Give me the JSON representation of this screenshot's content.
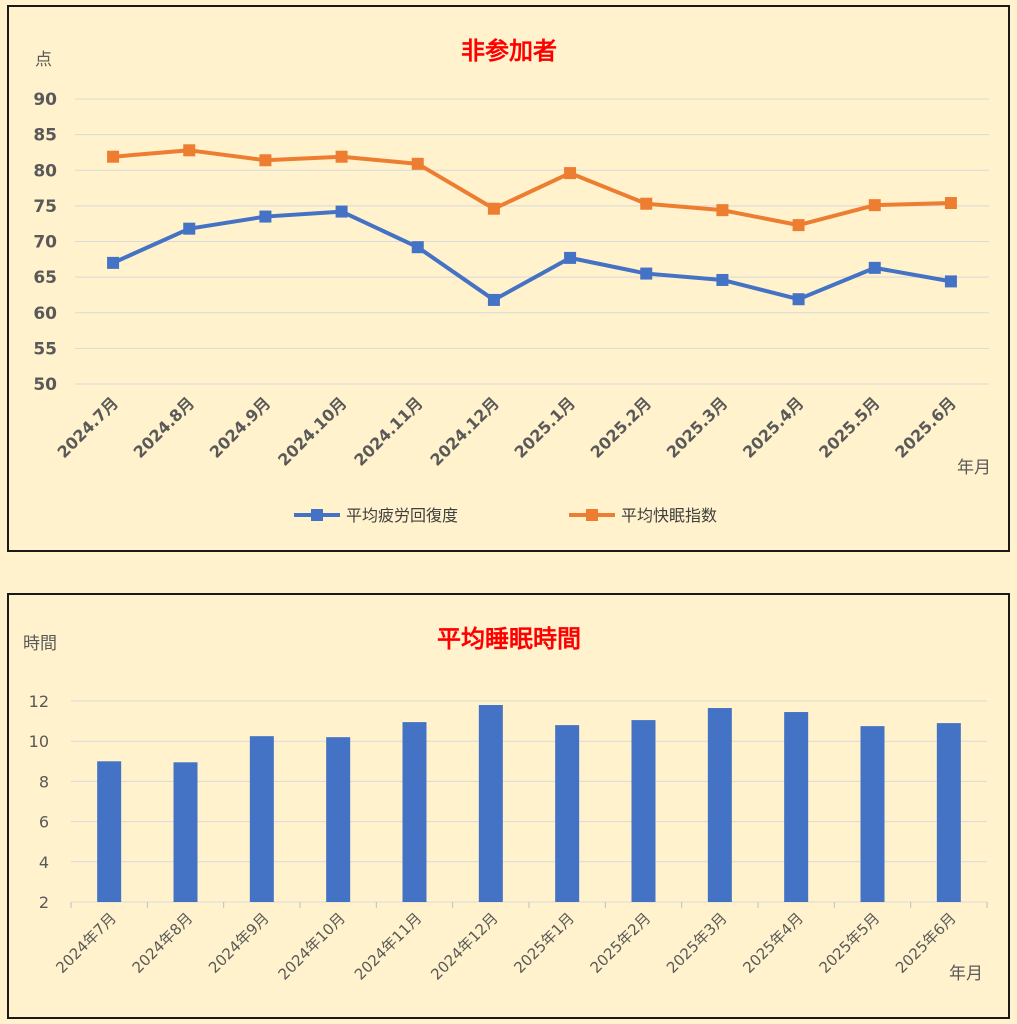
{
  "chart_data": [
    {
      "type": "line",
      "title": "非参加者",
      "ylabel": "点",
      "xlabel": "年月",
      "ylim": [
        50,
        90
      ],
      "yticks": [
        50,
        55,
        60,
        65,
        70,
        75,
        80,
        85,
        90
      ],
      "categories": [
        "2024.7月",
        "2024.8月",
        "2024.9月",
        "2024.10月",
        "2024.11月",
        "2024.12月",
        "2025.1月",
        "2025.2月",
        "2025.3月",
        "2025.4月",
        "2025.5月",
        "2025.6月"
      ],
      "series": [
        {
          "name": "平均疲労回復度",
          "color": "#4472C4",
          "values": [
            67.0,
            71.8,
            73.5,
            74.2,
            69.2,
            61.8,
            67.7,
            65.5,
            64.6,
            61.9,
            66.3,
            64.4
          ]
        },
        {
          "name": "平均快眠指数",
          "color": "#ED7D31",
          "values": [
            81.9,
            82.8,
            81.4,
            81.9,
            80.9,
            74.6,
            79.6,
            75.3,
            74.4,
            72.3,
            75.1,
            75.4
          ]
        }
      ],
      "grid": true,
      "legend": "bottom"
    },
    {
      "type": "bar",
      "title": "平均睡眠時間",
      "ylabel": "時間",
      "xlabel": "年月",
      "ylim": [
        2,
        12
      ],
      "yticks": [
        2,
        4,
        6,
        8,
        10,
        12
      ],
      "categories": [
        "2024年7月",
        "2024年8月",
        "2024年9月",
        "2024年10月",
        "2024年11月",
        "2024年12月",
        "2025年1月",
        "2025年2月",
        "2025年3月",
        "2025年4月",
        "2025年5月",
        "2025年6月"
      ],
      "values": [
        9.0,
        8.95,
        10.25,
        10.2,
        10.95,
        11.8,
        10.8,
        11.05,
        11.65,
        11.45,
        10.75,
        10.9
      ],
      "color": "#4472C4",
      "grid": true
    }
  ]
}
